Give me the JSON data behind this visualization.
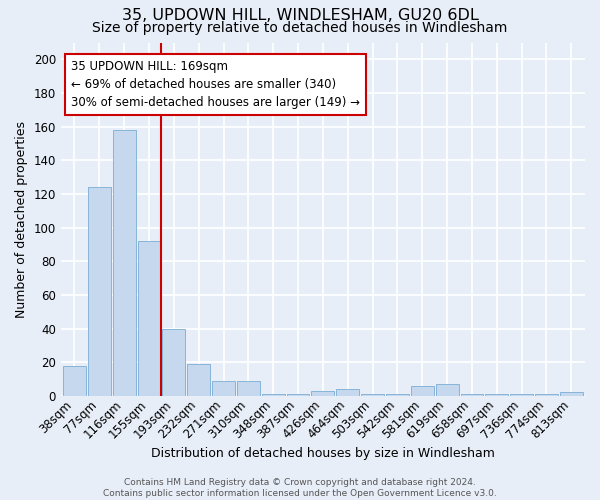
{
  "title": "35, UPDOWN HILL, WINDLESHAM, GU20 6DL",
  "subtitle": "Size of property relative to detached houses in Windlesham",
  "xlabel": "Distribution of detached houses by size in Windlesham",
  "ylabel": "Number of detached properties",
  "categories": [
    "38sqm",
    "77sqm",
    "116sqm",
    "155sqm",
    "193sqm",
    "232sqm",
    "271sqm",
    "310sqm",
    "348sqm",
    "387sqm",
    "426sqm",
    "464sqm",
    "503sqm",
    "542sqm",
    "581sqm",
    "619sqm",
    "658sqm",
    "697sqm",
    "736sqm",
    "774sqm",
    "813sqm"
  ],
  "values": [
    18,
    124,
    158,
    92,
    40,
    19,
    9,
    9,
    1,
    1,
    3,
    4,
    1,
    1,
    6,
    7,
    1,
    1,
    1,
    1,
    2
  ],
  "bar_color": "#c5d8ee",
  "bar_edge_color": "#7aadd4",
  "vline_x": 3.5,
  "vline_color": "#cc0000",
  "annotation_box_text": "35 UPDOWN HILL: 169sqm\n← 69% of detached houses are smaller (340)\n30% of semi-detached houses are larger (149) →",
  "annotation_box_color": "#cc0000",
  "annotation_bg": "#ffffff",
  "ylim": [
    0,
    210
  ],
  "yticks": [
    0,
    20,
    40,
    60,
    80,
    100,
    120,
    140,
    160,
    180,
    200
  ],
  "title_fontsize": 11.5,
  "subtitle_fontsize": 10,
  "axis_label_fontsize": 9,
  "tick_fontsize": 8.5,
  "annotation_fontsize": 8.5,
  "footer_text": "Contains HM Land Registry data © Crown copyright and database right 2024.\nContains public sector information licensed under the Open Government Licence v3.0.",
  "background_color": "#e8eef8",
  "plot_background": "#e8eef8",
  "grid_color": "#ffffff"
}
